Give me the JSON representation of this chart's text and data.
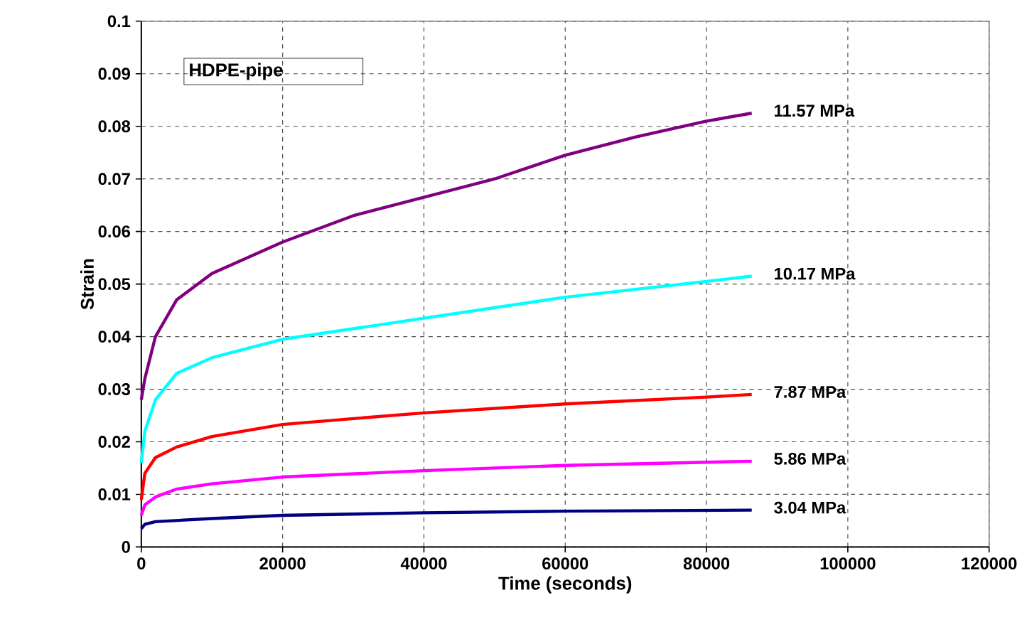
{
  "chart_data": {
    "type": "line",
    "xlabel": "Time (seconds)",
    "ylabel": "Strain",
    "annotations": [
      "HDPE-pipe"
    ],
    "xlim": [
      0,
      120000
    ],
    "ylim": [
      0,
      0.1
    ],
    "xticks": [
      0,
      20000,
      40000,
      60000,
      80000,
      100000,
      120000
    ],
    "yticks": [
      0,
      0.01,
      0.02,
      0.03,
      0.04,
      0.05,
      0.06,
      0.07,
      0.08,
      0.09,
      0.1
    ],
    "grid": true,
    "line_style": "solid",
    "marker": "none",
    "series": [
      {
        "name": "11.57 MPa",
        "color": "#800080",
        "x": [
          0,
          500,
          2000,
          5000,
          10000,
          20000,
          30000,
          40000,
          50000,
          60000,
          70000,
          80000,
          86400
        ],
        "values": [
          0.028,
          0.032,
          0.04,
          0.047,
          0.052,
          0.058,
          0.063,
          0.0665,
          0.07,
          0.0745,
          0.078,
          0.081,
          0.0825
        ]
      },
      {
        "name": "10.17 MPa",
        "color": "#00ffff",
        "x": [
          0,
          500,
          2000,
          5000,
          10000,
          20000,
          40000,
          60000,
          80000,
          86400
        ],
        "values": [
          0.016,
          0.022,
          0.028,
          0.033,
          0.036,
          0.0395,
          0.0435,
          0.0475,
          0.0505,
          0.0515
        ]
      },
      {
        "name": "7.87 MPa",
        "color": "#ff0000",
        "x": [
          0,
          500,
          2000,
          5000,
          10000,
          20000,
          40000,
          60000,
          80000,
          86400
        ],
        "values": [
          0.009,
          0.014,
          0.017,
          0.019,
          0.021,
          0.0233,
          0.0255,
          0.0272,
          0.0285,
          0.029
        ]
      },
      {
        "name": "5.86 MPa",
        "color": "#ff00ff",
        "x": [
          0,
          500,
          2000,
          5000,
          10000,
          20000,
          40000,
          60000,
          86400
        ],
        "values": [
          0.006,
          0.008,
          0.0095,
          0.011,
          0.012,
          0.0133,
          0.0145,
          0.0155,
          0.0163
        ]
      },
      {
        "name": "3.04 MPa",
        "color": "#000080",
        "x": [
          0,
          500,
          2000,
          10000,
          20000,
          40000,
          60000,
          86400
        ],
        "values": [
          0.0035,
          0.0043,
          0.0048,
          0.0054,
          0.006,
          0.0065,
          0.0068,
          0.007
        ]
      }
    ]
  }
}
